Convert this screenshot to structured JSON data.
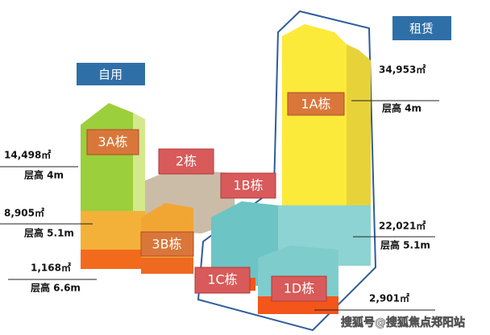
{
  "tags": {
    "rental": "租赁",
    "self_use": "自用"
  },
  "buildings": [
    {
      "label": "1A栋"
    },
    {
      "label": "3A栋"
    },
    {
      "label": "2栋"
    },
    {
      "label": "1B栋"
    },
    {
      "label": "3B栋"
    },
    {
      "label": "1C栋"
    },
    {
      "label": "1D栋"
    }
  ],
  "right_areas": [
    {
      "area": "34,953㎡",
      "height": "层高 4m"
    },
    {
      "area": "22,021㎡",
      "height": "层高 5.1m"
    },
    {
      "area": "2,901㎡"
    }
  ],
  "left_areas": [
    {
      "area": "14,498㎡",
      "height": "层高 4m"
    },
    {
      "area": "8,905㎡",
      "height": "层高 5.1m"
    },
    {
      "area": "1,168㎡",
      "height": "层高 6.6m"
    }
  ],
  "watermark": "搜狐号@搜狐焦点郑阳站"
}
